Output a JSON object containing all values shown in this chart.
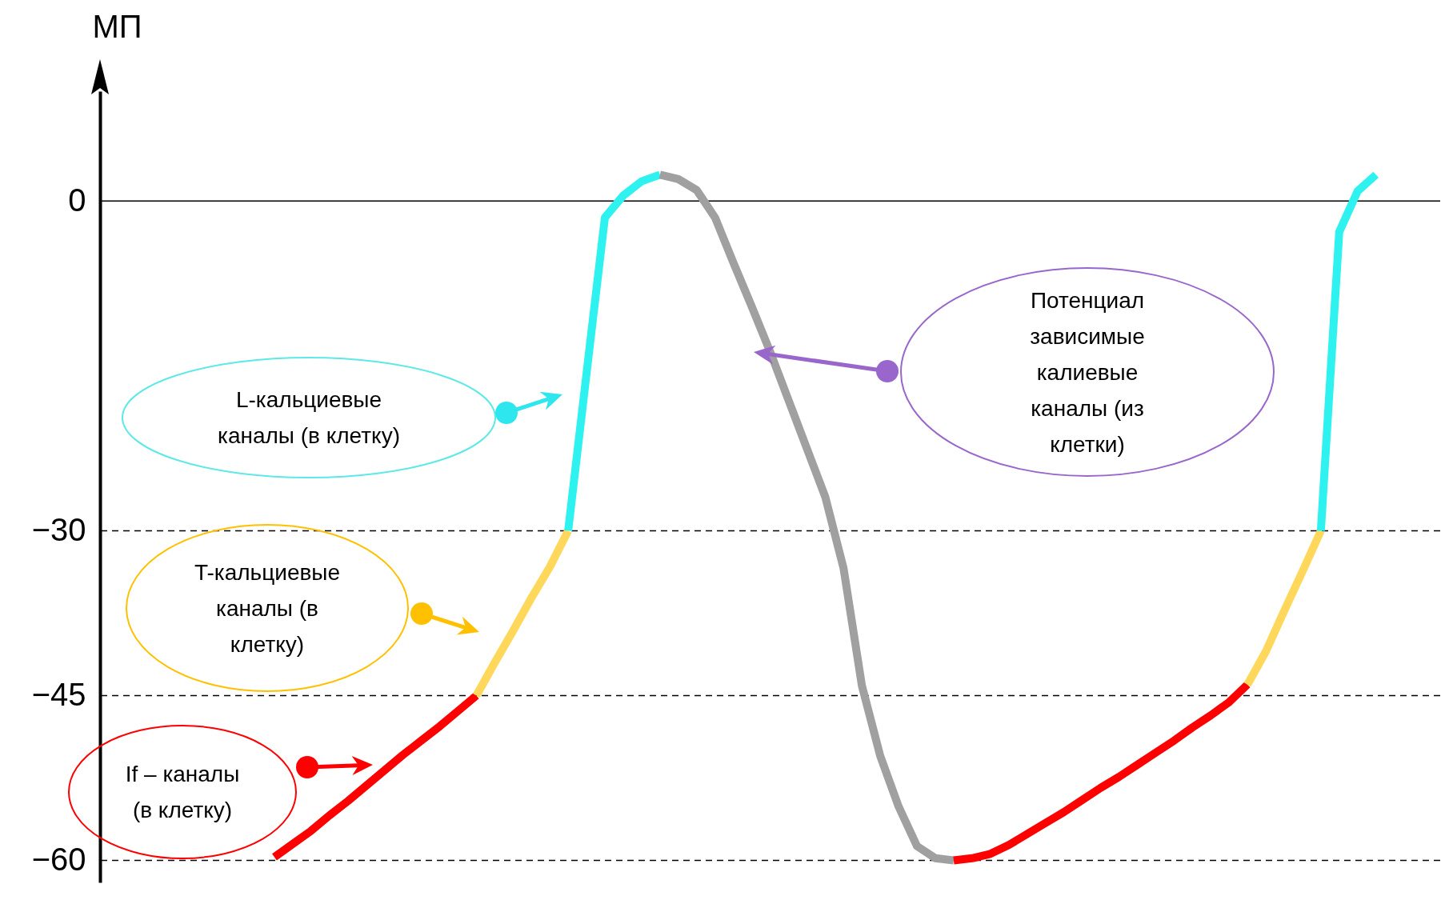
{
  "chart_data": {
    "type": "line",
    "ylabel": "МП",
    "categories": [
      null,
      null,
      null,
      null,
      null,
      null,
      null,
      null,
      null,
      null,
      null,
      null,
      null,
      null,
      null,
      null,
      null,
      null,
      null,
      null,
      null,
      null,
      null,
      null,
      null,
      null,
      null,
      null,
      null,
      null,
      null,
      null,
      null,
      null,
      null,
      null,
      null,
      null,
      null,
      null,
      null,
      null,
      null,
      null,
      null,
      null,
      null,
      null,
      null,
      null,
      null,
      null,
      null,
      null,
      null,
      null,
      null,
      null,
      null,
      null,
      null,
      null,
      null,
      null,
      null,
      null,
      null,
      null,
      null,
      null,
      null,
      null,
      null
    ],
    "series": [
      {
        "color": "#ff0000",
        "values": [
          null,
          null,
          null,
          null,
          null,
          null,
          null,
          null,
          null,
          -59.7,
          -58.5,
          -57.3,
          -55.9,
          -54.6,
          -53.2,
          -51.8,
          -50.4,
          -49.1,
          -47.8,
          -46.4,
          -45,
          null,
          null,
          null,
          null,
          null,
          null,
          null,
          null,
          null,
          null,
          null,
          null,
          null,
          null,
          null,
          null,
          null,
          null,
          null,
          null,
          null,
          null,
          null,
          null,
          null,
          null,
          null,
          null,
          null,
          null,
          null,
          null,
          null,
          null,
          null,
          null,
          null,
          null,
          null,
          null,
          null,
          null,
          null,
          null,
          null,
          null,
          null,
          null,
          null,
          null,
          null,
          null
        ]
      },
      {
        "color": "#ffd75a",
        "values": [
          null,
          null,
          null,
          null,
          null,
          null,
          null,
          null,
          null,
          null,
          null,
          null,
          null,
          null,
          null,
          null,
          null,
          null,
          null,
          null,
          -45,
          -42.0,
          -39.1,
          -36.1,
          -33.3,
          -30,
          null,
          null,
          null,
          null,
          null,
          null,
          null,
          null,
          null,
          null,
          null,
          null,
          null,
          null,
          null,
          null,
          null,
          null,
          null,
          null,
          null,
          null,
          null,
          null,
          null,
          null,
          null,
          null,
          null,
          null,
          null,
          null,
          null,
          null,
          null,
          null,
          null,
          null,
          null,
          null,
          null,
          null,
          null,
          null,
          null,
          null,
          null
        ]
      },
      {
        "color": "#2ef2f0",
        "values": [
          null,
          null,
          null,
          null,
          null,
          null,
          null,
          null,
          null,
          null,
          null,
          null,
          null,
          null,
          null,
          null,
          null,
          null,
          null,
          null,
          null,
          null,
          null,
          null,
          null,
          -30,
          -15.7,
          -1.5,
          0.5,
          1.8,
          2.4,
          null,
          null,
          null,
          null,
          null,
          null,
          null,
          null,
          null,
          null,
          null,
          null,
          null,
          null,
          null,
          null,
          null,
          null,
          null,
          null,
          null,
          null,
          null,
          null,
          null,
          null,
          null,
          null,
          null,
          null,
          null,
          null,
          null,
          null,
          null,
          null,
          null,
          null,
          null,
          null,
          null,
          null
        ]
      },
      {
        "color": "#a0a0a0",
        "values": [
          null,
          null,
          null,
          null,
          null,
          null,
          null,
          null,
          null,
          null,
          null,
          null,
          null,
          null,
          null,
          null,
          null,
          null,
          null,
          null,
          null,
          null,
          null,
          null,
          null,
          null,
          null,
          null,
          null,
          null,
          2.4,
          2.0,
          1.0,
          -1.5,
          -5.6,
          -9.6,
          -13.7,
          -18.1,
          -22.5,
          -26.9,
          -33.4,
          -44.1,
          -50.5,
          -55.1,
          -58.7,
          -59.8,
          -60.0,
          null,
          null,
          null,
          null,
          null,
          null,
          null,
          null,
          null,
          null,
          null,
          null,
          null,
          null,
          null,
          null,
          null,
          null,
          null,
          null,
          null,
          null,
          null,
          null,
          null,
          null
        ]
      },
      {
        "color": "#ff0000",
        "values": [
          null,
          null,
          null,
          null,
          null,
          null,
          null,
          null,
          null,
          null,
          null,
          null,
          null,
          null,
          null,
          null,
          null,
          null,
          null,
          null,
          null,
          null,
          null,
          null,
          null,
          null,
          null,
          null,
          null,
          null,
          null,
          null,
          null,
          null,
          null,
          null,
          null,
          null,
          null,
          null,
          null,
          null,
          null,
          null,
          null,
          null,
          -60.0,
          -59.8,
          -59.4,
          -58.6,
          -57.6,
          -56.6,
          -55.6,
          -54.5,
          -53.4,
          -52.4,
          -51.3,
          -50.2,
          -49.1,
          -47.9,
          -46.8,
          -45.6,
          -44.0,
          null,
          null,
          null,
          null,
          null,
          null,
          null,
          null,
          null,
          null
        ]
      },
      {
        "color": "#ffd75a",
        "values": [
          null,
          null,
          null,
          null,
          null,
          null,
          null,
          null,
          null,
          null,
          null,
          null,
          null,
          null,
          null,
          null,
          null,
          null,
          null,
          null,
          null,
          null,
          null,
          null,
          null,
          null,
          null,
          null,
          null,
          null,
          null,
          null,
          null,
          null,
          null,
          null,
          null,
          null,
          null,
          null,
          null,
          null,
          null,
          null,
          null,
          null,
          null,
          null,
          null,
          null,
          null,
          null,
          null,
          null,
          null,
          null,
          null,
          null,
          null,
          null,
          null,
          null,
          -44.0,
          -41.0,
          -37.3,
          -33.7,
          -30,
          null,
          null,
          null,
          null,
          null,
          null
        ]
      },
      {
        "color": "#2ef2f0",
        "values": [
          null,
          null,
          null,
          null,
          null,
          null,
          null,
          null,
          null,
          null,
          null,
          null,
          null,
          null,
          null,
          null,
          null,
          null,
          null,
          null,
          null,
          null,
          null,
          null,
          null,
          null,
          null,
          null,
          null,
          null,
          null,
          null,
          null,
          null,
          null,
          null,
          null,
          null,
          null,
          null,
          null,
          null,
          null,
          null,
          null,
          null,
          null,
          null,
          null,
          null,
          null,
          null,
          null,
          null,
          null,
          null,
          null,
          null,
          null,
          null,
          null,
          null,
          null,
          null,
          null,
          null,
          -30,
          -2.8,
          0.9,
          2.4,
          null,
          null,
          null
        ]
      }
    ],
    "ylim": [
      -62,
      10
    ],
    "yticks": [
      0,
      -30,
      -45,
      -60
    ],
    "tick_labels": "y",
    "ref_lines": [
      {
        "axis": "y",
        "value": 0,
        "color": "#000000",
        "line_style": "solid"
      },
      {
        "axis": "y",
        "value": -30,
        "color": "#000000",
        "line_style": "dashed"
      },
      {
        "axis": "y",
        "value": -45,
        "color": "#000000",
        "line_style": "dashed"
      },
      {
        "axis": "y",
        "value": -60,
        "color": "#000000",
        "line_style": "dashed"
      }
    ],
    "annotations": [
      "L-кальциевые каналы (в клетку)",
      "T-кальциевые каналы (в клетку)",
      "If – каналы (в клетку)",
      "Потенциал зависимые калиевые каналы (из клетки)"
    ]
  }
}
